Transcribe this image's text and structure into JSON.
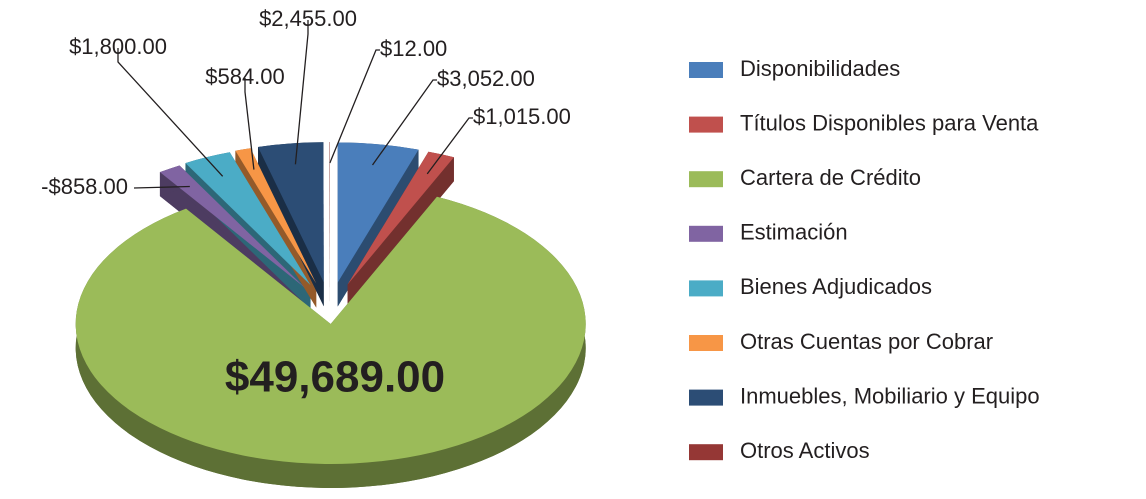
{
  "chart_data": {
    "type": "pie",
    "categories": [
      "Disponibilidades",
      "Títulos Disponibles para Venta",
      "Cartera de Crédito",
      "Estimación",
      "Bienes Adjudicados",
      "Otras Cuentas por Cobrar",
      "Inmuebles, Mobiliario y Equipo",
      "Otros Activos"
    ],
    "values": [
      3052,
      1015,
      49689,
      -858,
      1800,
      584,
      2455,
      12
    ],
    "value_labels": [
      "$3,052.00",
      "$1,015.00",
      "$49,689.00",
      "-$858.00",
      "$1,800.00",
      "$584.00",
      "$2,455.00",
      "$12.00"
    ],
    "colors": [
      "#4a7ebb",
      "#c0504d",
      "#9bbb59",
      "#8064a2",
      "#4bacc6",
      "#f79646",
      "#2c4d75",
      "#953735"
    ],
    "legend": "right"
  }
}
